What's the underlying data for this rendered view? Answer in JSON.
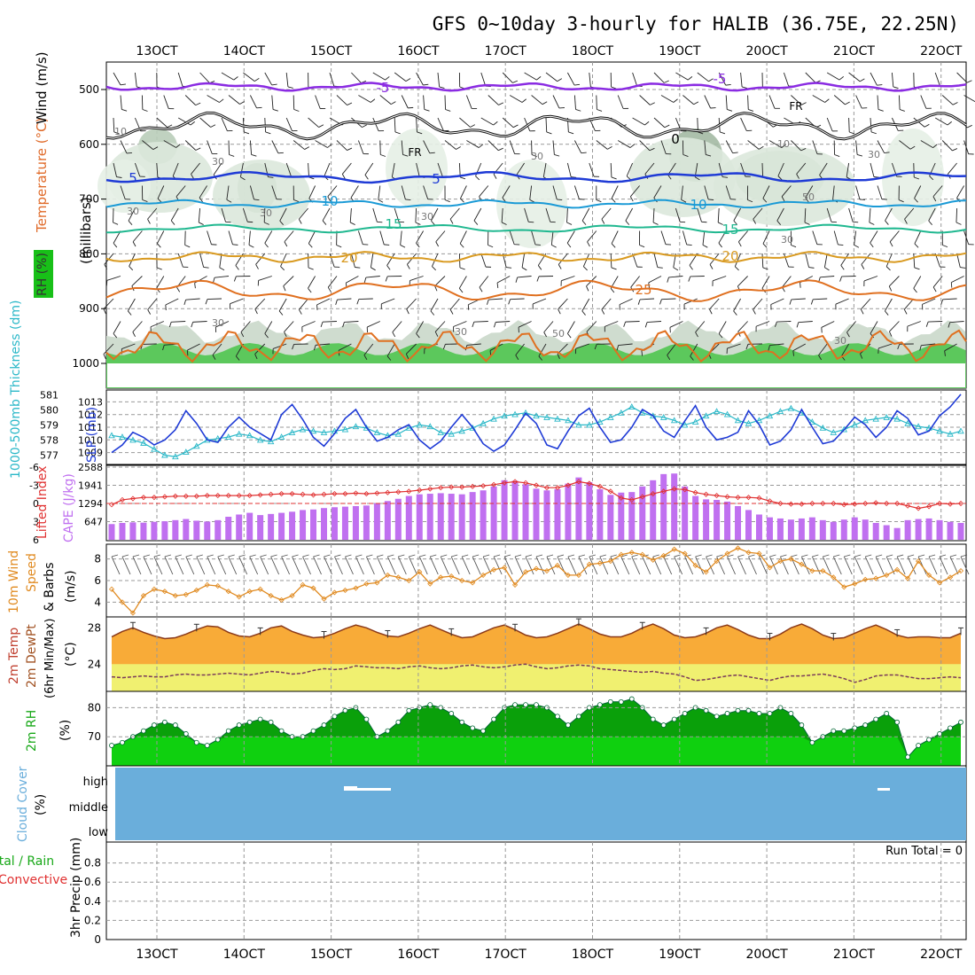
{
  "title": "GFS 0~10day 3-hourly for HALIB (36.75E, 22.25N)",
  "time_axis": {
    "start_index": 0,
    "total_steps": 81,
    "date_labels": [
      "13OCT",
      "14OCT",
      "15OCT",
      "16OCT",
      "17OCT",
      "18OCT",
      "19OCT",
      "20OCT",
      "21OCT",
      "22OCT"
    ]
  },
  "panels": {
    "upper_air": {
      "ylabel": "(millibars)",
      "side_labels": {
        "wind": "Wind (m/s)",
        "temp": "Temperature (°C)",
        "rh": "RH (%)"
      },
      "ticks": [
        "500",
        "600",
        "700",
        "800",
        "900",
        "1000"
      ],
      "isotherm_labels": [
        "-5",
        "-5",
        "FR",
        "FR",
        "0",
        "5",
        "5",
        "10",
        "10",
        "15",
        "15",
        "20",
        "20",
        "25"
      ],
      "rh_labels": [
        "10",
        "10",
        "30",
        "30",
        "30",
        "30",
        "30",
        "50",
        "30",
        "30",
        "30",
        "30",
        "50",
        "30"
      ]
    },
    "slp": {
      "left_label": "1000-500mb Thickness (dm)",
      "right_label": "SLP (mb)",
      "thick_ticks": [
        "581",
        "580",
        "579",
        "578",
        "577"
      ],
      "slp_ticks": [
        "1013",
        "1012",
        "1011",
        "1010",
        "1009"
      ]
    },
    "cape": {
      "left_label": "Lifted Index",
      "right_label": "CAPE (J/kg)",
      "li_ticks": [
        "-6",
        "-3",
        "0",
        "3",
        "6"
      ],
      "cape_ticks": [
        "2588",
        "1941",
        "1294",
        "647"
      ]
    },
    "wind10": {
      "label_a": "10m Wind",
      "label_b": "Speed",
      "label_c": "& Barbs",
      "unit": "(m/s)",
      "ticks": [
        "8",
        "6",
        "4"
      ]
    },
    "temp2m": {
      "label_a": "2m Temp",
      "label_b": "2m DewPt",
      "label_c": "(6hr Min/Max)",
      "unit": "(°C)",
      "ticks": [
        "28",
        "24"
      ]
    },
    "rh2m": {
      "label": "2m RH",
      "unit": "(%)",
      "ticks": [
        "80",
        "70"
      ]
    },
    "cloud": {
      "label": "Cloud Cover",
      "unit": "(%)",
      "ticks": [
        "high",
        "middle",
        "low"
      ]
    },
    "precip": {
      "label_a": "Total / Rain",
      "label_b": "Convective",
      "ylabel": "3hr Precip (mm)",
      "ticks": [
        "0.8",
        "0.6",
        "0.4",
        "0.2",
        "0"
      ],
      "run_total": "Run Total = 0"
    }
  },
  "chart_data": [
    {
      "type": "line",
      "title": "SLP (mb)",
      "ylim": [
        1008.2,
        1013.8
      ],
      "values": [
        1009.0,
        1009.6,
        1010.6,
        1010.2,
        1009.6,
        1010.0,
        1010.8,
        1012.3,
        1011.3,
        1010.0,
        1009.8,
        1011.0,
        1011.8,
        1011.0,
        1010.5,
        1010.0,
        1012.0,
        1012.8,
        1011.6,
        1010.2,
        1009.5,
        1010.5,
        1011.7,
        1012.4,
        1011.0,
        1009.9,
        1010.2,
        1010.8,
        1011.2,
        1010.0,
        1009.3,
        1009.9,
        1011.0,
        1012.0,
        1011.0,
        1009.7,
        1009.1,
        1009.6,
        1010.8,
        1012.1,
        1011.3,
        1009.6,
        1009.3,
        1010.7,
        1011.9,
        1012.5,
        1011.0,
        1009.8,
        1010.0,
        1011.0,
        1012.4,
        1011.9,
        1010.7,
        1010.2,
        1011.5,
        1012.7,
        1011.0,
        1010.0,
        1010.2,
        1010.6,
        1012.3,
        1011.2,
        1009.6,
        1009.9,
        1010.8,
        1012.4,
        1011.0,
        1009.7,
        1009.9,
        1010.8,
        1011.8,
        1011.2,
        1010.2,
        1011.0,
        1012.3,
        1011.7,
        1010.4,
        1010.7,
        1011.9,
        1012.6,
        1013.6
      ]
    },
    {
      "type": "line",
      "title": "1000-500mb Thickness (dm)",
      "ylim": [
        576.5,
        581.2
      ],
      "values": [
        578.3,
        578.2,
        578.0,
        577.8,
        577.4,
        577.0,
        576.9,
        577.2,
        577.6,
        578.0,
        578.1,
        578.2,
        578.4,
        578.3,
        578.0,
        577.9,
        578.2,
        578.5,
        578.7,
        578.6,
        578.5,
        578.6,
        578.7,
        578.9,
        578.8,
        578.5,
        578.3,
        578.4,
        578.8,
        579.0,
        578.9,
        578.5,
        578.4,
        578.6,
        578.8,
        579.1,
        579.4,
        579.6,
        579.7,
        579.8,
        579.6,
        579.5,
        579.4,
        579.3,
        579.0,
        579.0,
        579.2,
        579.5,
        579.8,
        580.2,
        579.8,
        579.6,
        579.5,
        579.3,
        579.0,
        579.2,
        579.6,
        579.9,
        579.7,
        579.3,
        579.1,
        579.3,
        579.6,
        579.9,
        580.1,
        579.8,
        579.2,
        578.8,
        578.5,
        578.7,
        579.0,
        579.3,
        579.4,
        579.5,
        579.4,
        579.1,
        578.9,
        578.8,
        578.6,
        578.4,
        578.6
      ]
    },
    {
      "type": "bar",
      "title": "CAPE (J/kg)",
      "ylim": [
        0,
        2588
      ],
      "values": [
        560,
        600,
        620,
        610,
        640,
        660,
        700,
        740,
        680,
        650,
        700,
        820,
        900,
        960,
        880,
        920,
        960,
        1000,
        1060,
        1080,
        1130,
        1160,
        1180,
        1200,
        1220,
        1300,
        1380,
        1460,
        1560,
        1620,
        1640,
        1660,
        1640,
        1620,
        1700,
        1760,
        1900,
        2120,
        2100,
        1980,
        1820,
        1760,
        1800,
        2000,
        2220,
        2050,
        1800,
        1600,
        1680,
        1700,
        1900,
        2120,
        2340,
        2360,
        1900,
        1560,
        1440,
        1420,
        1360,
        1200,
        1060,
        900,
        800,
        760,
        720,
        760,
        800,
        700,
        640,
        720,
        800,
        720,
        600,
        520,
        420,
        700,
        740,
        760,
        700,
        640,
        600
      ]
    },
    {
      "type": "line",
      "title": "Lifted Index",
      "ylim": [
        -6,
        6
      ],
      "values": [
        0.2,
        -0.6,
        -0.8,
        -1.0,
        -1.0,
        -1.1,
        -1.2,
        -1.2,
        -1.2,
        -1.3,
        -1.3,
        -1.3,
        -1.3,
        -1.3,
        -1.4,
        -1.5,
        -1.6,
        -1.6,
        -1.5,
        -1.4,
        -1.5,
        -1.6,
        -1.6,
        -1.7,
        -1.6,
        -1.7,
        -1.8,
        -1.9,
        -2.0,
        -2.2,
        -2.4,
        -2.6,
        -2.7,
        -2.7,
        -2.8,
        -2.9,
        -3.1,
        -3.4,
        -3.6,
        -3.4,
        -3.0,
        -2.6,
        -2.6,
        -3.0,
        -3.6,
        -3.3,
        -2.8,
        -2.0,
        -0.9,
        -0.6,
        -1.1,
        -1.6,
        -2.0,
        -2.4,
        -2.3,
        -1.8,
        -1.5,
        -1.3,
        -1.1,
        -1.0,
        -1.0,
        -0.9,
        -0.4,
        0.0,
        0.1,
        0.1,
        0.0,
        0.0,
        0.0,
        0.2,
        0.1,
        0.0,
        -0.1,
        0.0,
        0.0,
        0.4,
        0.8,
        0.5,
        0.0,
        0.1,
        0.0
      ]
    },
    {
      "type": "line",
      "title": "10m Wind Speed (m/s)",
      "ylim": [
        2.8,
        9.2
      ],
      "values": [
        5.2,
        4.0,
        3.0,
        4.6,
        5.2,
        5.0,
        4.6,
        4.7,
        5.1,
        5.6,
        5.5,
        5.0,
        4.5,
        5.0,
        5.2,
        4.6,
        4.2,
        4.6,
        5.6,
        5.3,
        4.3,
        4.9,
        5.1,
        5.3,
        5.7,
        5.8,
        6.5,
        6.3,
        6.0,
        6.8,
        5.7,
        6.3,
        6.4,
        6.0,
        5.8,
        6.5,
        7.0,
        7.2,
        5.6,
        6.8,
        7.1,
        6.9,
        7.4,
        6.5,
        6.5,
        7.5,
        7.6,
        7.8,
        8.4,
        8.6,
        8.4,
        7.9,
        8.3,
        8.9,
        8.5,
        7.4,
        6.8,
        7.8,
        8.5,
        9.0,
        8.6,
        8.5,
        7.2,
        7.8,
        8.0,
        7.5,
        6.9,
        6.9,
        6.3,
        5.4,
        5.7,
        6.1,
        6.2,
        6.5,
        7.0,
        6.2,
        7.8,
        6.5,
        5.8,
        6.3,
        6.9
      ]
    },
    {
      "type": "area",
      "title": "2m Temp (°C)",
      "ylim": [
        21,
        29
      ],
      "values": [
        27.0,
        27.6,
        28.0,
        27.5,
        27.1,
        26.8,
        26.9,
        27.3,
        27.8,
        28.2,
        28.1,
        27.5,
        27.1,
        27.0,
        27.4,
        28.0,
        28.2,
        27.6,
        27.2,
        26.9,
        27.0,
        27.4,
        27.9,
        28.3,
        28.0,
        27.5,
        27.1,
        27.0,
        27.4,
        27.9,
        28.3,
        27.8,
        27.3,
        26.9,
        27.0,
        27.5,
        28.0,
        28.3,
        27.8,
        27.2,
        26.9,
        27.0,
        27.4,
        27.9,
        28.4,
        27.9,
        27.3,
        27.0,
        27.0,
        27.4,
        28.0,
        28.4,
        27.9,
        27.2,
        26.9,
        27.0,
        27.4,
        28.0,
        28.3,
        27.8,
        27.2,
        26.8,
        26.8,
        27.3,
        28.0,
        28.4,
        27.9,
        27.2,
        26.8,
        26.9,
        27.4,
        27.9,
        28.3,
        27.8,
        27.2,
        26.9,
        27.0,
        27.0,
        26.9,
        26.9,
        27.4
      ]
    },
    {
      "type": "line",
      "title": "2m DewPt (°C)",
      "ylim": [
        21,
        29
      ],
      "values": [
        22.6,
        22.5,
        22.6,
        22.7,
        22.6,
        22.6,
        22.8,
        22.9,
        22.8,
        22.8,
        22.9,
        23.0,
        22.9,
        22.8,
        23.0,
        23.2,
        23.1,
        22.9,
        23.0,
        23.3,
        23.5,
        23.4,
        23.5,
        23.8,
        23.7,
        23.6,
        23.6,
        23.5,
        23.7,
        23.8,
        23.6,
        23.5,
        23.6,
        23.8,
        23.9,
        23.7,
        23.6,
        23.7,
        23.9,
        24.0,
        23.7,
        23.5,
        23.6,
        23.8,
        23.9,
        23.8,
        23.5,
        23.4,
        23.3,
        23.2,
        23.1,
        23.2,
        23.0,
        22.9,
        22.6,
        22.2,
        22.3,
        22.5,
        22.7,
        22.8,
        22.6,
        22.4,
        22.2,
        22.5,
        22.7,
        22.7,
        22.8,
        22.9,
        22.7,
        22.4,
        22.0,
        22.3,
        22.7,
        22.8,
        22.8,
        22.6,
        22.4,
        22.4,
        22.5,
        22.6,
        22.5
      ]
    },
    {
      "type": "area",
      "title": "2m RH (%)",
      "ylim": [
        60,
        85
      ],
      "values": [
        67,
        68,
        70,
        72,
        74,
        75,
        74,
        71,
        68,
        67,
        69,
        72,
        74,
        75,
        76,
        75,
        72,
        70,
        70,
        72,
        74,
        77,
        79,
        80,
        76,
        70,
        72,
        75,
        79,
        80,
        81,
        80,
        78,
        75,
        73,
        72,
        76,
        80,
        81,
        81,
        81,
        80,
        77,
        74,
        77,
        80,
        81,
        82,
        82,
        83,
        80,
        76,
        74,
        76,
        78,
        80,
        79,
        77,
        78,
        79,
        79,
        78,
        78,
        80,
        78,
        74,
        68,
        70,
        72,
        72,
        73,
        74,
        76,
        78,
        75,
        63,
        67,
        69,
        71,
        73,
        75
      ]
    },
    {
      "type": "bar",
      "title": "3hr Precip (mm)",
      "ylim": [
        0,
        1.0
      ],
      "values": [
        0,
        0,
        0,
        0,
        0,
        0,
        0,
        0,
        0,
        0,
        0,
        0,
        0,
        0,
        0,
        0,
        0,
        0,
        0,
        0,
        0,
        0,
        0,
        0,
        0,
        0,
        0,
        0,
        0,
        0,
        0,
        0,
        0,
        0,
        0,
        0,
        0,
        0,
        0,
        0,
        0,
        0,
        0,
        0,
        0,
        0,
        0,
        0,
        0,
        0,
        0,
        0,
        0,
        0,
        0,
        0,
        0,
        0,
        0,
        0,
        0,
        0,
        0,
        0,
        0,
        0,
        0,
        0,
        0,
        0,
        0,
        0,
        0,
        0,
        0,
        0,
        0,
        0,
        0,
        0,
        0
      ]
    }
  ],
  "colors": {
    "slp": "#1f3bd6",
    "thickness": "#2bb8c8",
    "cape": "#c070f0",
    "li": "#e03030",
    "wind": "#e08a20",
    "temp_fill": "#f8ab38",
    "dew_fill": "#f0f070",
    "rh_fill": "#0fd00f",
    "rh_dark": "#0aa00a",
    "cloud": "#6aaedb",
    "cloud_high": "#ffffff"
  }
}
